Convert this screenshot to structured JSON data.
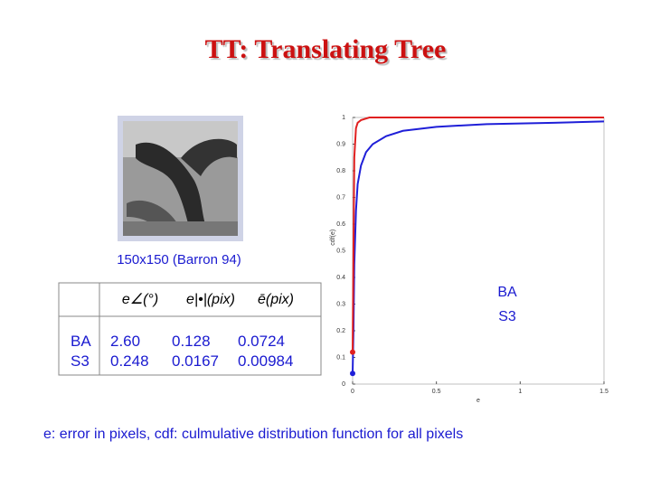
{
  "title": "TT: Translating Tree",
  "image_caption": "150x150 (Barron 94)",
  "table": {
    "header": [
      "e∠(°)",
      "e|•|(pix)",
      "ē(pix)"
    ],
    "rows": [
      [
        "BA",
        "2.60",
        "0.128",
        "0.0724"
      ],
      [
        "S3",
        "0.248",
        "0.0167",
        "0.00984"
      ]
    ]
  },
  "footer": "e: error in pixels, cdf: culmulative distribution function for all pixels",
  "chart_data": {
    "type": "line",
    "xlabel": "e",
    "ylabel": "cdf(e)",
    "xlim": [
      0,
      1.5
    ],
    "xticks": [
      0,
      0.5,
      1,
      1.5
    ],
    "ylim": [
      0,
      1
    ],
    "yticks": [
      0,
      0.1,
      0.2,
      0.3,
      0.4,
      0.5,
      0.6,
      0.7,
      0.8,
      0.9,
      1
    ],
    "series": [
      {
        "name": "BA",
        "color": "#1f1fd8",
        "x": [
          0,
          0.005,
          0.01,
          0.02,
          0.03,
          0.05,
          0.08,
          0.12,
          0.2,
          0.3,
          0.5,
          0.8,
          1.2,
          1.5
        ],
        "values": [
          0.04,
          0.2,
          0.45,
          0.65,
          0.75,
          0.82,
          0.87,
          0.9,
          0.93,
          0.95,
          0.965,
          0.975,
          0.98,
          0.985
        ]
      },
      {
        "name": "S3",
        "color": "#e02020",
        "x": [
          0,
          0.005,
          0.01,
          0.02,
          0.03,
          0.05,
          0.1,
          1.5
        ],
        "values": [
          0.12,
          0.5,
          0.85,
          0.96,
          0.98,
          0.99,
          1,
          1
        ]
      }
    ]
  }
}
